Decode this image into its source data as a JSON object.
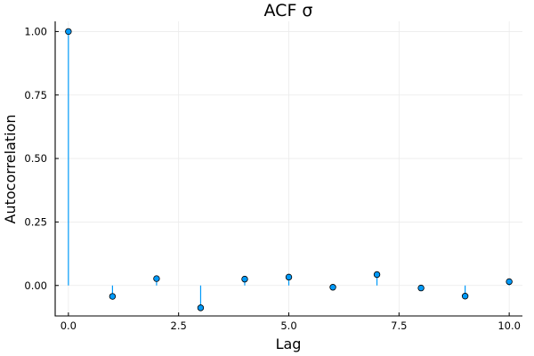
{
  "chart_data": {
    "type": "scatter",
    "style": "stem",
    "title": "ACF σ",
    "xlabel": "Lag",
    "ylabel": "Autocorrelation",
    "xlim": [
      -0.3,
      10.3
    ],
    "ylim": [
      -0.12,
      1.04
    ],
    "xticks": [
      0,
      2.5,
      5,
      7.5,
      10
    ],
    "xtick_labels": [
      "0.0",
      "2.5",
      "5.0",
      "7.5",
      "10.0"
    ],
    "yticks": [
      0,
      0.25,
      0.5,
      0.75,
      1.0
    ],
    "ytick_labels": [
      "0.00",
      "0.25",
      "0.50",
      "0.75",
      "1.00"
    ],
    "grid": true,
    "legend": "none",
    "color": "#009af9",
    "marker_color": "#009af9",
    "x": [
      0,
      1,
      2,
      3,
      4,
      5,
      6,
      7,
      8,
      9,
      10
    ],
    "values": [
      1.0,
      -0.043,
      0.027,
      -0.088,
      0.025,
      0.033,
      -0.007,
      0.043,
      -0.01,
      -0.042,
      0.015
    ]
  }
}
